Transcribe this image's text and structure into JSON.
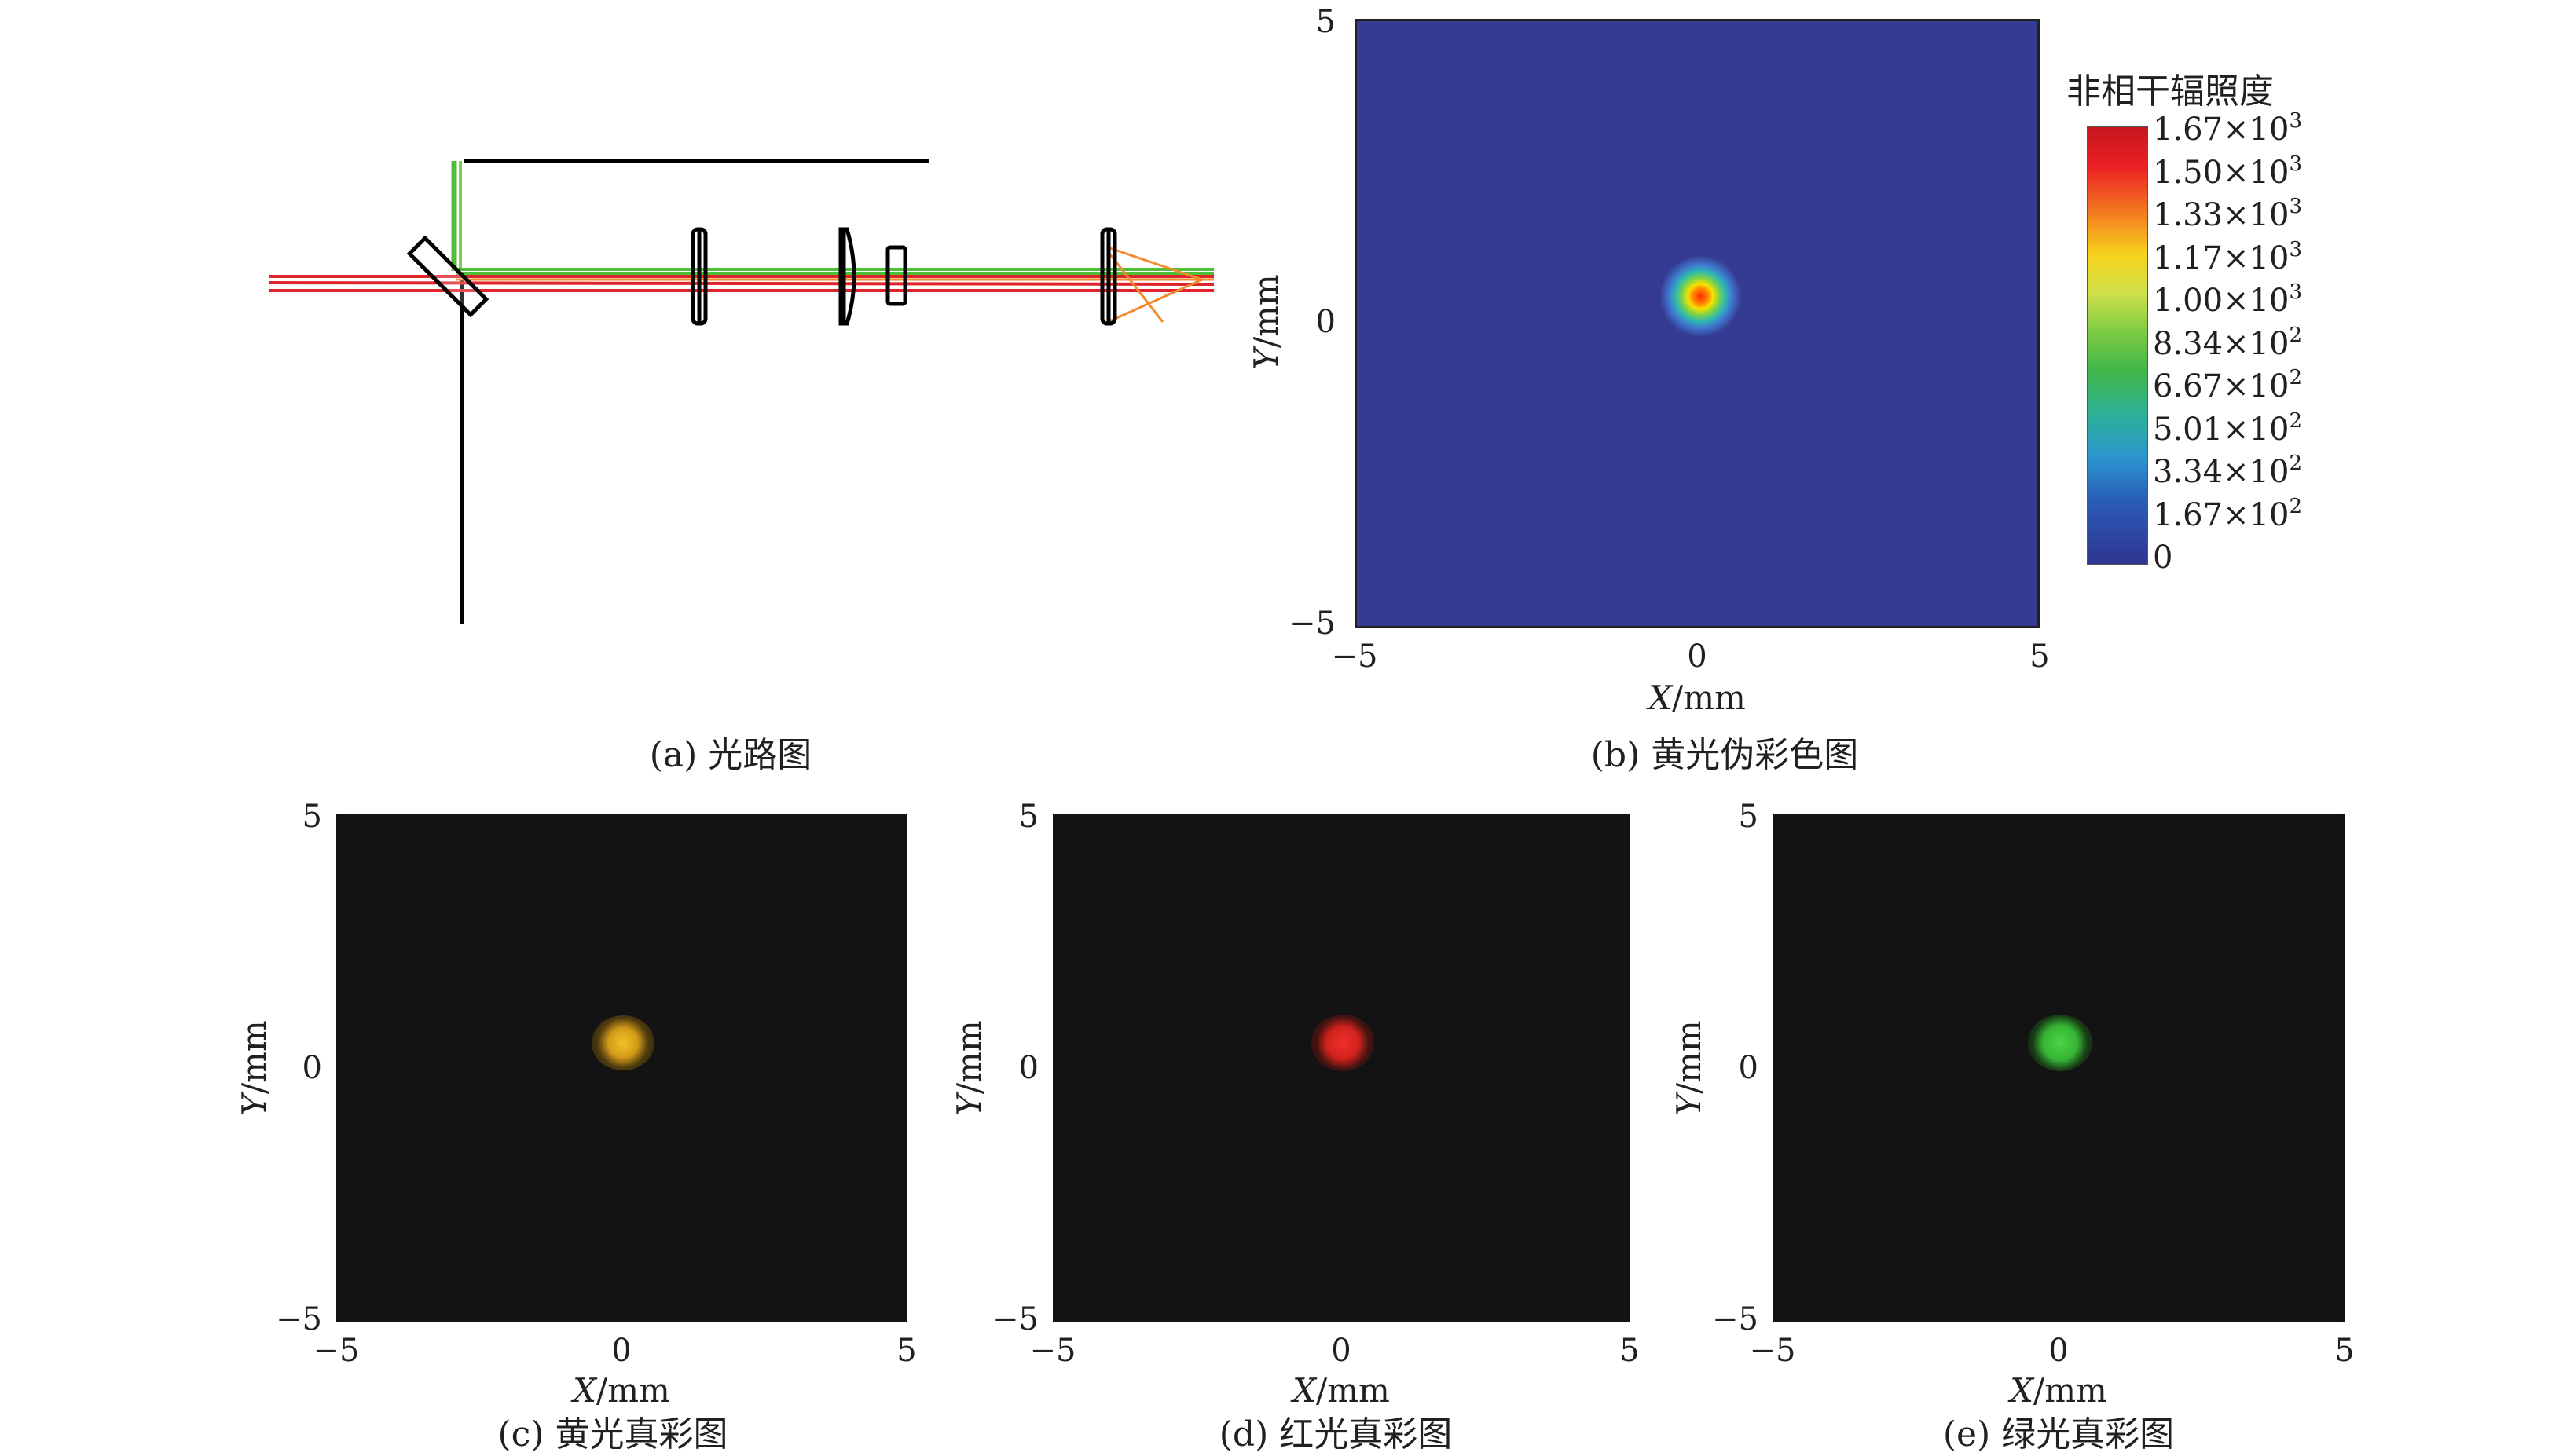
{
  "panels": {
    "a": {
      "caption": "(a) 光路图"
    },
    "b": {
      "caption": "(b) 黄光伪彩色图",
      "colorbar_title": "非相干辐照度",
      "colorbar_ticks": [
        {
          "m": "1.67×10",
          "e": "3"
        },
        {
          "m": "1.50×10",
          "e": "3"
        },
        {
          "m": "1.33×10",
          "e": "3"
        },
        {
          "m": "1.17×10",
          "e": "3"
        },
        {
          "m": "1.00×10",
          "e": "3"
        },
        {
          "m": "8.34×10",
          "e": "2"
        },
        {
          "m": "6.67×10",
          "e": "2"
        },
        {
          "m": "5.01×10",
          "e": "2"
        },
        {
          "m": "3.34×10",
          "e": "2"
        },
        {
          "m": "1.67×10",
          "e": "2"
        },
        {
          "m": "0",
          "e": ""
        }
      ],
      "colors": {
        "background": "#353b92",
        "spot": "#ff2a00"
      }
    },
    "c": {
      "caption": "(c) 黄光真彩图",
      "spot_color": "#e6b21e"
    },
    "d": {
      "caption": "(d) 红光真彩图",
      "spot_color": "#e8261e"
    },
    "e": {
      "caption": "(e) 绿光真彩图",
      "spot_color": "#3fc53a"
    }
  },
  "axes": {
    "x_ticks": [
      "−5",
      "0",
      "5"
    ],
    "y_ticks": [
      "5",
      "0",
      "−5"
    ],
    "x_label_var": "X",
    "x_label_unit": "/mm",
    "y_label_var": "Y",
    "y_label_unit": "/mm"
  },
  "chart_data": [
    {
      "type": "heatmap",
      "panel": "b",
      "xlim": [
        -5,
        5
      ],
      "ylim": [
        -5,
        5
      ],
      "zlim": [
        0,
        1670
      ],
      "spot_center": [
        0,
        0.4
      ],
      "peak": 1670
    },
    {
      "type": "heatmap",
      "panel": "c",
      "xlim": [
        -5,
        5
      ],
      "ylim": [
        -5,
        5
      ],
      "spot_center": [
        0,
        0.4
      ],
      "color": "yellow"
    },
    {
      "type": "heatmap",
      "panel": "d",
      "xlim": [
        -5,
        5
      ],
      "ylim": [
        -5,
        5
      ],
      "spot_center": [
        0,
        0.4
      ],
      "color": "red"
    },
    {
      "type": "heatmap",
      "panel": "e",
      "xlim": [
        -5,
        5
      ],
      "ylim": [
        -5,
        5
      ],
      "spot_center": [
        0,
        0.4
      ],
      "color": "green"
    }
  ]
}
